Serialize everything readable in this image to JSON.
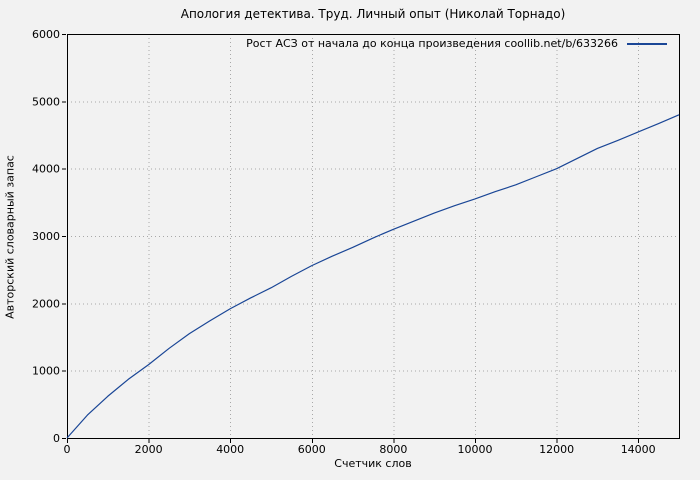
{
  "figure": {
    "background": "#f2f2f2"
  },
  "chart_data": {
    "type": "line",
    "title": "Апология детектива. Труд. Личный опыт (Николай Торнадо)",
    "xlabel": "Счетчик слов",
    "ylabel": "Авторский словарный запас",
    "xlim": [
      0,
      15000
    ],
    "ylim": [
      0,
      6000
    ],
    "xticks": [
      0,
      2000,
      4000,
      6000,
      8000,
      10000,
      12000,
      14000
    ],
    "yticks": [
      0,
      1000,
      2000,
      3000,
      4000,
      5000,
      6000
    ],
    "grid": "dotted-major",
    "grid_color": "#a8a8a8",
    "axis_color": "#000000",
    "legend_position": "top-right-inside",
    "series": [
      {
        "name": "Рост АСЗ от начала до конца произведения coollib.net/b/633266",
        "color": "#1a4696",
        "x": [
          0,
          500,
          1000,
          1500,
          2000,
          2500,
          3000,
          3500,
          4000,
          4500,
          5000,
          5500,
          6000,
          6500,
          7000,
          7500,
          8000,
          8500,
          9000,
          9500,
          10000,
          10500,
          11000,
          11500,
          12000,
          12500,
          13000,
          13500,
          14000,
          14500,
          15000
        ],
        "y": [
          0,
          340,
          620,
          870,
          1090,
          1330,
          1550,
          1740,
          1920,
          2080,
          2230,
          2400,
          2560,
          2700,
          2830,
          2970,
          3100,
          3220,
          3340,
          3450,
          3550,
          3660,
          3760,
          3880,
          4000,
          4150,
          4300,
          4420,
          4545,
          4670,
          4800
        ]
      }
    ]
  }
}
